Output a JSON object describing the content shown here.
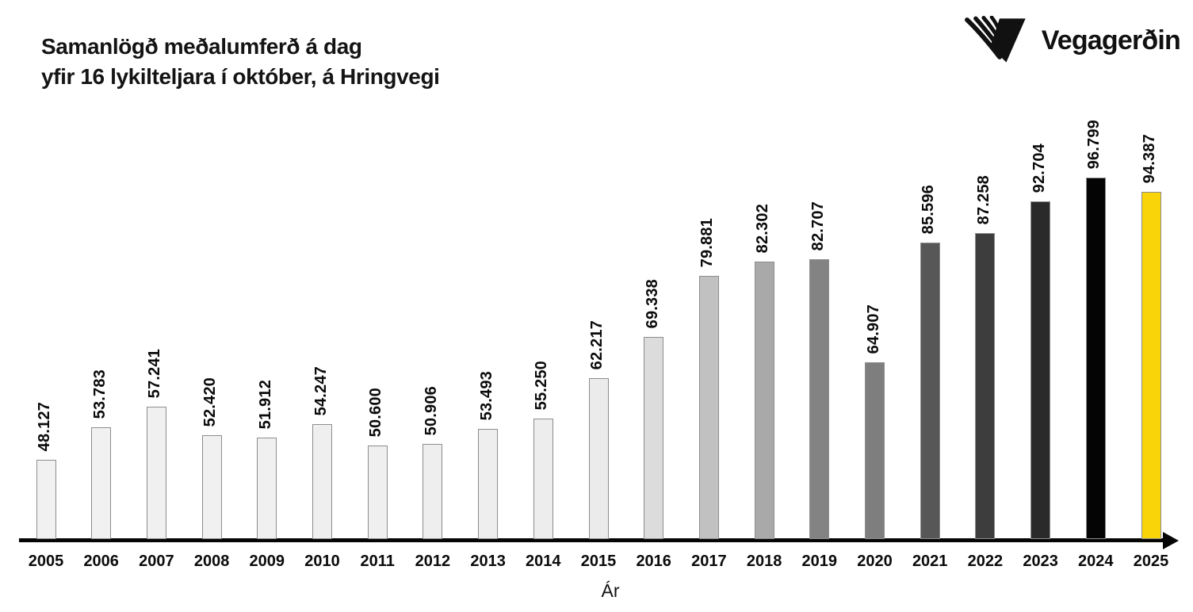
{
  "header": {
    "title_line1": "Samanlögð meðalumferð á dag",
    "title_line2": "yfir 16 lykilteljara í október, á Hringvegi",
    "logo_text": "Vegagerðin",
    "logo_icon": "vegagerdin-striped-v-icon"
  },
  "chart_data": {
    "type": "bar",
    "title": "Samanlögð meðalumferð á dag yfir 16 lykilteljara í október, á Hringvegi",
    "xlabel": "Ár",
    "ylabel": "",
    "categories": [
      "2005",
      "2006",
      "2007",
      "2008",
      "2009",
      "2010",
      "2011",
      "2012",
      "2013",
      "2014",
      "2015",
      "2016",
      "2017",
      "2018",
      "2019",
      "2020",
      "2021",
      "2022",
      "2023",
      "2024",
      "2025"
    ],
    "values": [
      48127,
      53783,
      57241,
      52420,
      51912,
      54247,
      50600,
      50906,
      53493,
      55250,
      62217,
      69338,
      79881,
      82302,
      82707,
      64907,
      85596,
      87258,
      92704,
      96799,
      94387
    ],
    "value_labels": [
      "48.127",
      "53.783",
      "57.241",
      "52.420",
      "51.912",
      "54.247",
      "50.600",
      "50.906",
      "53.493",
      "55.250",
      "62.217",
      "69.338",
      "79.881",
      "82.302",
      "82.707",
      "64.907",
      "85.596",
      "87.258",
      "92.704",
      "96.799",
      "94.387"
    ],
    "bar_colors": [
      "#f1f1f1",
      "#f1f1f1",
      "#f0f0f0",
      "#f0f0f0",
      "#f0f0f0",
      "#efefef",
      "#efefef",
      "#eeeeee",
      "#eeeeee",
      "#ededed",
      "#ebebeb",
      "#dcdcdc",
      "#c1c1c1",
      "#a9a9a9",
      "#838383",
      "#7e7e7e",
      "#575757",
      "#3d3d3d",
      "#2a2a2a",
      "#040404",
      "#f8d408"
    ],
    "bar_border_color": "#8d8d8d",
    "highlight_year": "2025",
    "highlight_color": "#f8d408",
    "axis_color": "#050505",
    "ylim": [
      34600,
      100800
    ],
    "grid": false,
    "legend": false,
    "value_label_rotation_deg": 90
  }
}
